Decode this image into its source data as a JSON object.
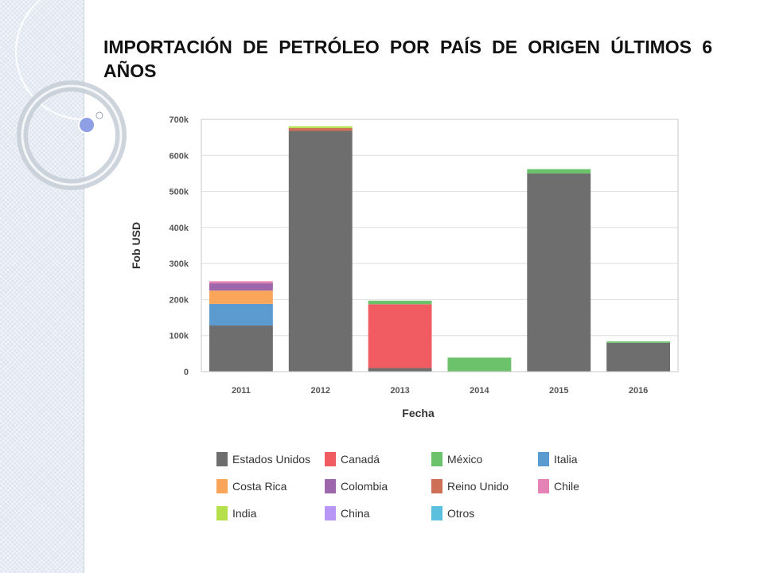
{
  "slide": {
    "title": "IMPORTACIÓN DE PETRÓLEO POR PAÍS DE ORIGEN ÚLTIMOS 6 AÑOS"
  },
  "chart_data": {
    "type": "bar",
    "stacked": true,
    "title": "",
    "xlabel": "Fecha",
    "ylabel": "Fob USD",
    "ylim": [
      0,
      700000
    ],
    "y_ticks": [
      {
        "value": 0,
        "label": "0"
      },
      {
        "value": 100000,
        "label": "100k"
      },
      {
        "value": 200000,
        "label": "200k"
      },
      {
        "value": 300000,
        "label": "300k"
      },
      {
        "value": 400000,
        "label": "400k"
      },
      {
        "value": 500000,
        "label": "500k"
      },
      {
        "value": 600000,
        "label": "600k"
      },
      {
        "value": 700000,
        "label": "700k"
      }
    ],
    "grid": true,
    "legend_position": "bottom",
    "categories": [
      "2011",
      "2012",
      "2013",
      "2014",
      "2015",
      "2016"
    ],
    "series": [
      {
        "name": "Estados Unidos",
        "color": "#6e6e6e",
        "values": [
          128000,
          668000,
          10000,
          0,
          550000,
          80000
        ]
      },
      {
        "name": "Canadá",
        "color": "#f15b62",
        "values": [
          0,
          0,
          177000,
          0,
          0,
          0
        ]
      },
      {
        "name": "México",
        "color": "#6cc26a",
        "values": [
          0,
          0,
          10000,
          39000,
          12000,
          4000
        ]
      },
      {
        "name": "Italia",
        "color": "#5b9bd0",
        "values": [
          60000,
          0,
          0,
          0,
          0,
          0
        ]
      },
      {
        "name": "Costa Rica",
        "color": "#f9a65a",
        "values": [
          37000,
          0,
          0,
          0,
          0,
          0
        ]
      },
      {
        "name": "Colombia",
        "color": "#9e67ab",
        "values": [
          20000,
          0,
          0,
          0,
          0,
          0
        ]
      },
      {
        "name": "Reino Unido",
        "color": "#ce7058",
        "values": [
          0,
          8000,
          0,
          0,
          0,
          0
        ]
      },
      {
        "name": "Chile",
        "color": "#e683b6",
        "values": [
          6000,
          0,
          0,
          0,
          0,
          0
        ]
      },
      {
        "name": "India",
        "color": "#b5e04c",
        "values": [
          0,
          5000,
          0,
          0,
          0,
          0
        ]
      },
      {
        "name": "China",
        "color": "#b896f5",
        "values": [
          0,
          0,
          0,
          0,
          0,
          0
        ]
      },
      {
        "name": "Otros",
        "color": "#5bc0de",
        "values": [
          0,
          0,
          0,
          0,
          0,
          0
        ]
      }
    ]
  }
}
